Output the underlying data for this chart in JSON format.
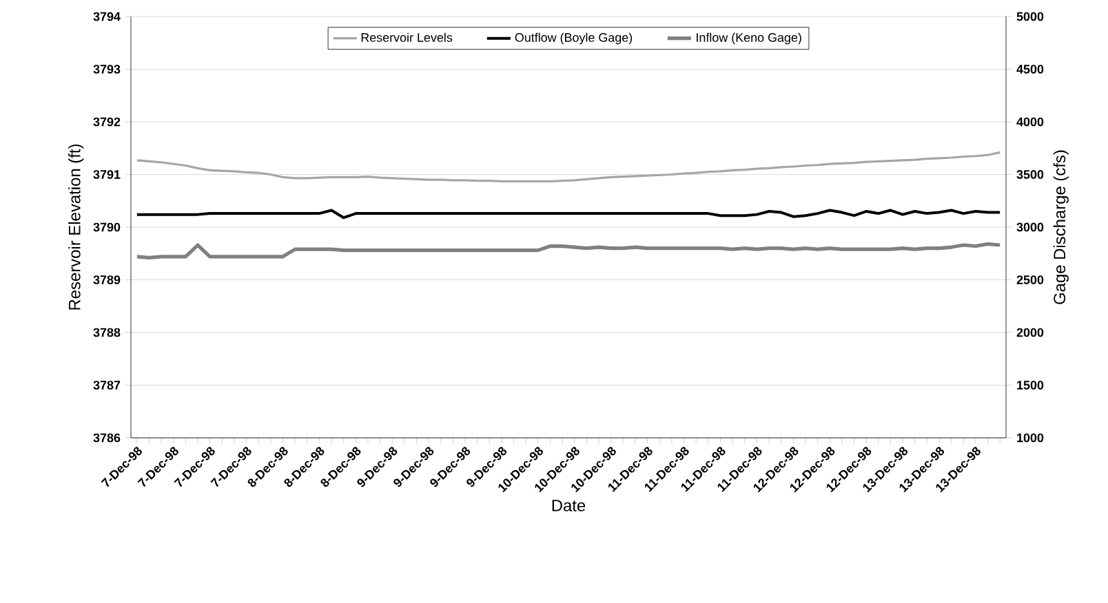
{
  "chart_data": {
    "type": "line",
    "xlabel": "Date",
    "ylabel": "Reservoir Elevation (ft)",
    "y2label": "Gage Discharge (cfs)",
    "categories": [
      "7-Dec-98",
      null,
      null,
      "7-Dec-98",
      null,
      null,
      "7-Dec-98",
      null,
      null,
      "7-Dec-98",
      null,
      null,
      "8-Dec-98",
      null,
      null,
      "8-Dec-98",
      null,
      null,
      "8-Dec-98",
      null,
      null,
      "9-Dec-98",
      null,
      null,
      "9-Dec-98",
      null,
      null,
      "9-Dec-98",
      null,
      null,
      "9-Dec-98",
      null,
      null,
      "10-Dec-98",
      null,
      null,
      "10-Dec-98",
      null,
      null,
      "10-Dec-98",
      null,
      null,
      "11-Dec-98",
      null,
      null,
      "11-Dec-98",
      null,
      null,
      "11-Dec-98",
      null,
      null,
      "11-Dec-98",
      null,
      null,
      "12-Dec-98",
      null,
      null,
      "12-Dec-98",
      null,
      null,
      "12-Dec-98",
      null,
      null,
      "13-Dec-98",
      null,
      null,
      "13-Dec-98",
      null,
      null,
      "13-Dec-98",
      null,
      null
    ],
    "series": [
      {
        "name": "Reservoir Levels",
        "color": "#a6a6a6",
        "values": [
          3791.27,
          3791.25,
          3791.23,
          3791.2,
          3791.17,
          3791.12,
          3791.08,
          3791.07,
          3791.06,
          3791.04,
          3791.03,
          3791.0,
          3790.95,
          3790.93,
          3790.93,
          3790.94,
          3790.95,
          3790.95,
          3790.95,
          3790.96,
          3790.94,
          3790.93,
          3790.92,
          3790.91,
          3790.9,
          3790.9,
          3790.89,
          3790.89,
          3790.88,
          3790.88,
          3790.87,
          3790.87,
          3790.87,
          3790.87,
          3790.87,
          3790.88,
          3790.89,
          3790.91,
          3790.93,
          3790.95,
          3790.96,
          3790.97,
          3790.98,
          3790.99,
          3791.0,
          3791.02,
          3791.03,
          3791.05,
          3791.06,
          3791.08,
          3791.09,
          3791.11,
          3791.12,
          3791.14,
          3791.15,
          3791.17,
          3791.18,
          3791.2,
          3791.21,
          3791.22,
          3791.24,
          3791.25,
          3791.26,
          3791.27,
          3791.28,
          3791.3,
          3791.31,
          3791.32,
          3791.34,
          3791.35,
          3791.37,
          3791.42
        ]
      },
      {
        "name": "Outflow (Boyle Gage)",
        "color": "#000000",
        "axis": "y2",
        "values": [
          3120,
          3120,
          3120,
          3120,
          3120,
          3120,
          3130,
          3130,
          3130,
          3130,
          3130,
          3130,
          3130,
          3130,
          3130,
          3130,
          3160,
          3090,
          3130,
          3130,
          3130,
          3130,
          3130,
          3130,
          3130,
          3130,
          3130,
          3130,
          3130,
          3130,
          3130,
          3130,
          3130,
          3130,
          3130,
          3130,
          3130,
          3130,
          3130,
          3130,
          3130,
          3130,
          3130,
          3130,
          3130,
          3130,
          3130,
          3130,
          3110,
          3110,
          3110,
          3120,
          3150,
          3140,
          3100,
          3110,
          3130,
          3160,
          3140,
          3110,
          3150,
          3130,
          3160,
          3120,
          3150,
          3130,
          3140,
          3160,
          3130,
          3150,
          3140,
          3140
        ]
      },
      {
        "name": "Inflow (Keno Gage)",
        "color": "#808080",
        "axis": "y2",
        "values": [
          2720,
          2710,
          2720,
          2720,
          2720,
          2830,
          2720,
          2720,
          2720,
          2720,
          2720,
          2720,
          2720,
          2790,
          2790,
          2790,
          2790,
          2780,
          2780,
          2780,
          2780,
          2780,
          2780,
          2780,
          2780,
          2780,
          2780,
          2780,
          2780,
          2780,
          2780,
          2780,
          2780,
          2780,
          2820,
          2820,
          2810,
          2800,
          2810,
          2800,
          2800,
          2810,
          2800,
          2800,
          2800,
          2800,
          2800,
          2800,
          2800,
          2790,
          2800,
          2790,
          2800,
          2800,
          2790,
          2800,
          2790,
          2800,
          2790,
          2790,
          2790,
          2790,
          2790,
          2800,
          2790,
          2800,
          2800,
          2810,
          2830,
          2820,
          2840,
          2830
        ]
      }
    ],
    "ylim": [
      3786,
      3794
    ],
    "yticks": [
      3786,
      3787,
      3788,
      3789,
      3790,
      3791,
      3792,
      3793,
      3794
    ],
    "y2lim": [
      1000,
      5000
    ],
    "y2ticks": [
      1000,
      1500,
      2000,
      2500,
      3000,
      3500,
      4000,
      4500,
      5000
    ],
    "grid": "y",
    "legend": "top"
  }
}
